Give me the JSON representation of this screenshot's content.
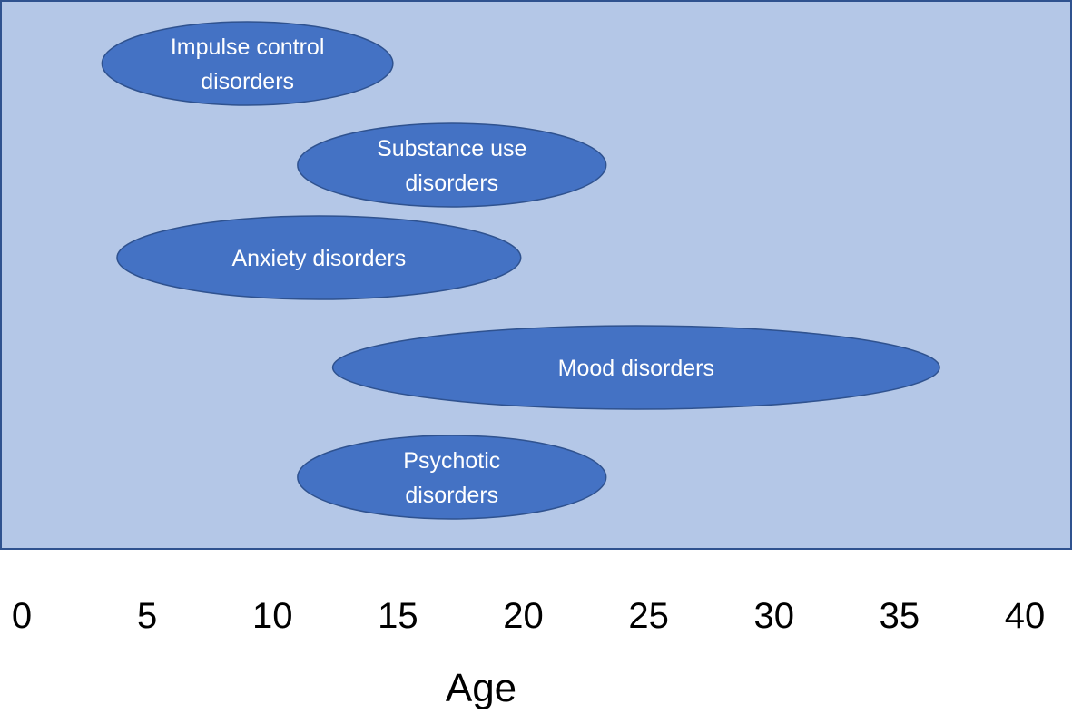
{
  "chart_data": {
    "type": "range-ellipses",
    "colors": {
      "panel_fill": "#b4c7e7",
      "panel_border": "#2f528f",
      "ellipse_fill": "#4472c4",
      "ellipse_stroke": "#2f528f",
      "label_text": "#ffffff",
      "axis_text": "#000000"
    },
    "xlabel": "Age",
    "x_ticks": [
      "0",
      "5",
      "10",
      "15",
      "20",
      "25",
      "30",
      "35",
      "40"
    ],
    "xlim": [
      0,
      40
    ],
    "disorders": [
      {
        "label_lines": [
          "Impulse control",
          "disorders"
        ],
        "age_start": 3.2,
        "age_end": 14.8
      },
      {
        "label_lines": [
          "Substance use",
          "disorders"
        ],
        "age_start": 11.0,
        "age_end": 23.3
      },
      {
        "label_lines": [
          "Anxiety disorders"
        ],
        "age_start": 3.8,
        "age_end": 19.9
      },
      {
        "label_lines": [
          "Mood disorders"
        ],
        "age_start": 12.4,
        "age_end": 36.6
      },
      {
        "label_lines": [
          "Psychotic",
          "disorders"
        ],
        "age_start": 11.0,
        "age_end": 23.3
      }
    ]
  }
}
